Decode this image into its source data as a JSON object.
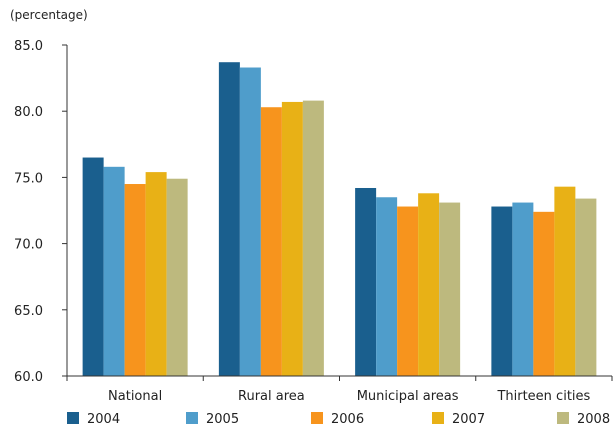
{
  "chart_data": {
    "type": "bar",
    "unit_label": "(percentage)",
    "categories": [
      "National",
      "Rural area",
      "Municipal areas",
      "Thirteen cities"
    ],
    "ylim": [
      60,
      85
    ],
    "yticks": [
      "85.0",
      "80.0",
      "75.0",
      "70.0",
      "65.0",
      "60.0"
    ],
    "ytick_values": [
      85,
      80,
      75,
      70,
      65,
      60
    ],
    "grid": false,
    "legend_position": "bottom",
    "series": [
      {
        "name": "2004",
        "color": "#1a5f8e",
        "values": [
          76.5,
          83.7,
          74.2,
          72.8
        ]
      },
      {
        "name": "2005",
        "color": "#4f9dcb",
        "values": [
          75.8,
          83.3,
          73.5,
          73.1
        ]
      },
      {
        "name": "2006",
        "color": "#f7941d",
        "values": [
          74.5,
          80.3,
          72.8,
          72.4
        ]
      },
      {
        "name": "2007",
        "color": "#e8b116",
        "values": [
          75.4,
          80.7,
          73.8,
          74.3
        ]
      },
      {
        "name": "2008",
        "color": "#bdb97e",
        "values": [
          74.9,
          80.8,
          73.1,
          73.4
        ]
      }
    ]
  }
}
